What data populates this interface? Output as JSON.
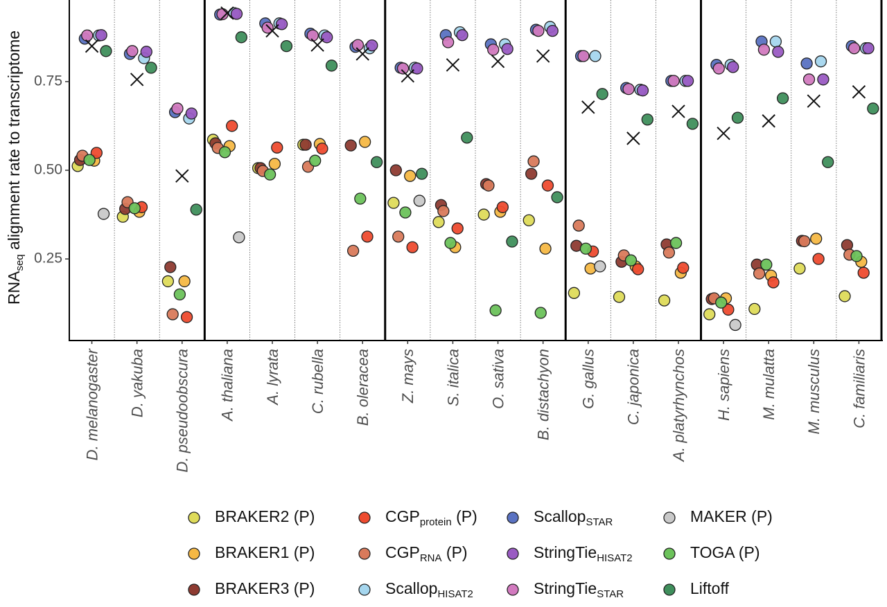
{
  "chart_data": {
    "type": "strip",
    "y_label": {
      "text": "RNA",
      "sub": "seq",
      "rest": " alignment rate to transcriptome"
    },
    "categories": [
      "D. melanogaster",
      "D. yakuba",
      "D. pseudoobscura",
      "A. thaliana",
      "A. lyrata",
      "C. rubella",
      "B. oleracea",
      "Z. mays",
      "S. italica",
      "O. sativa",
      "B. distachyon",
      "G. gallus",
      "C. japonica",
      "A. platyrhynchos",
      "H. sapiens",
      "M. mulatta",
      "M. musculus",
      "C. familiaris"
    ],
    "ylim": [
      0.02,
      0.98
    ],
    "yticks": [
      0.25,
      {
        "value": 0.5,
        "label": "0.50"
      },
      0.75
    ],
    "series": [
      {
        "name": "BRAKER2 (P)",
        "color": "#dedb5a",
        "values": [
          0.512,
          0.369,
          0.187,
          0.586,
          0.506,
          0.572,
          null,
          0.408,
          0.354,
          0.375,
          0.359,
          0.154,
          0.143,
          0.133,
          0.094,
          0.109,
          0.223,
          0.145
        ]
      },
      {
        "name": "BRAKER1 (P)",
        "color": "#f5b845",
        "values": [
          0.527,
          0.383,
          0.187,
          0.568,
          0.518,
          0.574,
          0.58,
          0.484,
          0.283,
          0.383,
          0.279,
          0.223,
          0.229,
          0.211,
          0.139,
          0.203,
          0.307,
          0.242
        ]
      },
      {
        "name": "BRAKER3 (P)",
        "color": "#8e3b31",
        "values": [
          0.529,
          0.391,
          0.227,
          0.576,
          0.506,
          0.572,
          0.57,
          0.5,
          0.402,
          0.461,
          0.49,
          0.287,
          0.242,
          0.291,
          0.137,
          0.234,
          0.301,
          0.289
        ]
      },
      {
        "name": "CGP",
        "name_sub": "protein",
        "name_suffix": " (P)",
        "color": "#ee4b2f",
        "values": [
          0.549,
          0.396,
          0.086,
          0.625,
          0.564,
          0.561,
          0.313,
          0.283,
          0.336,
          0.396,
          0.457,
          0.271,
          0.221,
          0.225,
          0.107,
          0.184,
          0.25,
          0.211
        ]
      },
      {
        "name": "CGP",
        "name_sub": "RNA",
        "name_suffix": " (P)",
        "color": "#d97a5b",
        "values": [
          0.541,
          0.41,
          0.094,
          0.563,
          0.498,
          0.51,
          0.273,
          0.313,
          0.385,
          0.457,
          0.525,
          0.344,
          0.26,
          0.268,
          0.139,
          0.209,
          0.3,
          0.262
        ]
      },
      {
        "name": "Scallop",
        "name_sub": "HISAT2",
        "color": "#a5d6ee",
        "values": [
          0.88,
          0.816,
          0.646,
          0.943,
          0.914,
          0.88,
          0.844,
          0.789,
          0.889,
          0.855,
          0.904,
          0.822,
          0.727,
          0.752,
          0.797,
          0.863,
          0.807,
          0.844
        ]
      },
      {
        "name": "Scallop",
        "name_sub": "STAR",
        "color": "#5a72c2",
        "values": [
          0.871,
          0.828,
          0.664,
          0.939,
          0.914,
          0.885,
          0.848,
          0.789,
          0.881,
          0.855,
          0.896,
          0.822,
          0.732,
          0.752,
          0.797,
          0.863,
          0.801,
          0.85
        ]
      },
      {
        "name": "StringTie",
        "name_sub": "HISAT2",
        "color": "#9a5bc3",
        "values": [
          0.881,
          0.834,
          0.66,
          0.941,
          0.912,
          0.875,
          0.852,
          0.787,
          0.881,
          0.842,
          0.893,
          null,
          0.725,
          0.752,
          0.791,
          0.834,
          0.756,
          0.844
        ]
      },
      {
        "name": "StringTie",
        "name_sub": "STAR",
        "color": "#d27abf",
        "values": [
          0.88,
          0.836,
          0.674,
          0.94,
          0.902,
          0.88,
          0.853,
          0.787,
          0.861,
          0.84,
          0.893,
          0.822,
          0.729,
          0.752,
          0.787,
          0.84,
          0.756,
          0.844
        ]
      },
      {
        "name": "MAKER (P)",
        "color": "#c9c9c9",
        "values": [
          0.377,
          null,
          null,
          0.311,
          null,
          null,
          null,
          0.414,
          null,
          null,
          null,
          0.229,
          null,
          null,
          0.064,
          null,
          null,
          null
        ]
      },
      {
        "name": "TOGA (P)",
        "color": "#6cc25b",
        "values": [
          0.529,
          0.393,
          0.15,
          0.551,
          0.488,
          0.527,
          0.42,
          0.381,
          0.295,
          0.105,
          0.098,
          0.279,
          0.246,
          0.295,
          0.127,
          0.234,
          null,
          0.258
        ]
      },
      {
        "name": "Liftoff",
        "color": "#3f8f5c",
        "values": [
          0.836,
          0.789,
          0.389,
          0.875,
          0.85,
          0.795,
          0.523,
          0.49,
          0.592,
          0.299,
          0.424,
          0.715,
          0.643,
          0.631,
          0.648,
          0.703,
          0.523,
          0.674
        ]
      }
    ],
    "x_marks": {
      "color": "#111111",
      "values": [
        0.85,
        0.756,
        0.484,
        0.943,
        0.893,
        0.853,
        0.828,
        0.766,
        0.797,
        0.807,
        0.822,
        0.678,
        0.59,
        0.666,
        0.604,
        0.639,
        0.695,
        0.721
      ]
    }
  }
}
